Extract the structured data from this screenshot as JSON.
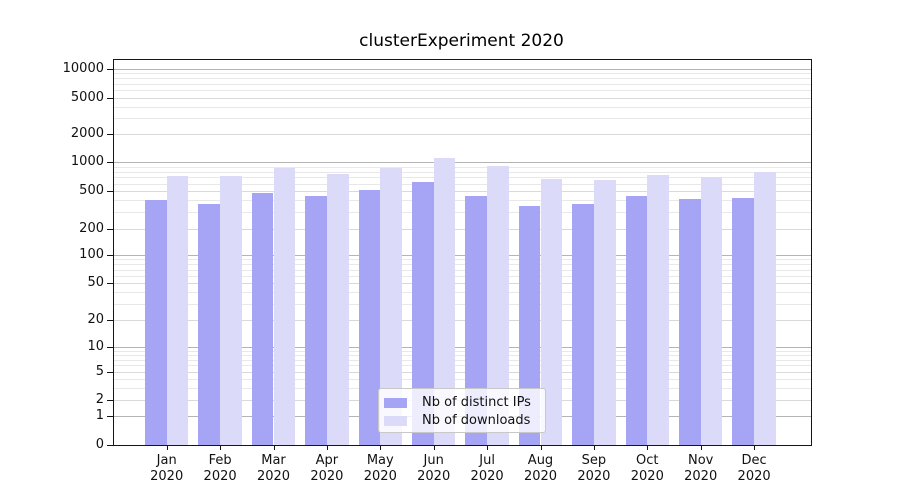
{
  "chart_data": {
    "type": "bar",
    "title": "clusterExperiment 2020",
    "categories": [
      "Jan 2020",
      "Feb 2020",
      "Mar 2020",
      "Apr 2020",
      "May 2020",
      "Jun 2020",
      "Jul 2020",
      "Aug 2020",
      "Sep 2020",
      "Oct 2020",
      "Nov 2020",
      "Dec 2020"
    ],
    "series": [
      {
        "name": "Nb of distinct IPs",
        "color": "#a6a5f5",
        "values": [
          410,
          375,
          490,
          450,
          520,
          640,
          450,
          360,
          370,
          455,
          425,
          430
        ]
      },
      {
        "name": "Nb of downloads",
        "color": "#dbdaf8",
        "values": [
          740,
          730,
          890,
          780,
          890,
          1150,
          950,
          680,
          670,
          750,
          720,
          820
        ]
      }
    ],
    "xlabel": "",
    "ylabel": "",
    "yscale": "symlog",
    "ylim": [
      0,
      13000
    ],
    "y_ticks": [
      0,
      1,
      2,
      5,
      10,
      20,
      50,
      100,
      200,
      500,
      1000,
      2000,
      5000,
      10000
    ],
    "y_tick_labels": [
      "0",
      "1",
      "2",
      "5",
      "10",
      "20",
      "50",
      "100",
      "200",
      "500",
      "1000",
      "2000",
      "5000",
      "10000"
    ],
    "grid": true,
    "legend_position": "lower center"
  }
}
